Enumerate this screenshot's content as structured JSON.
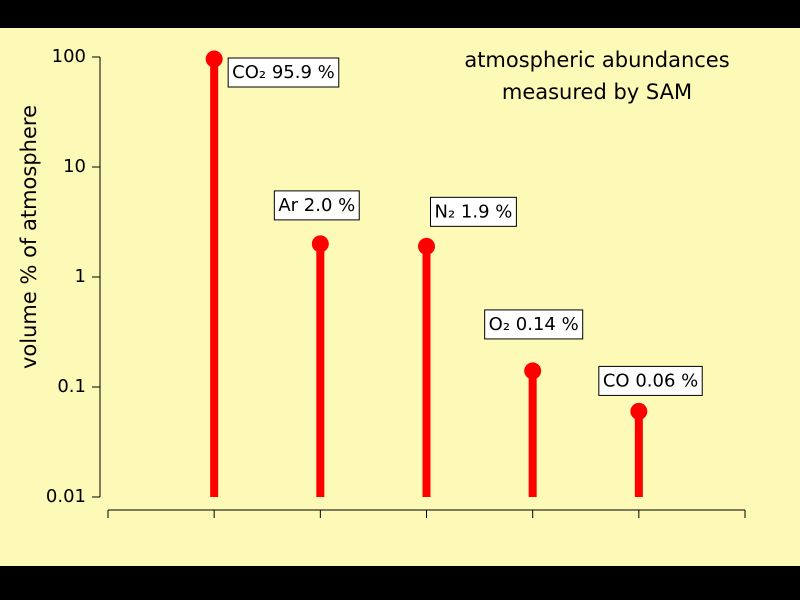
{
  "chart_data": {
    "type": "lollipop",
    "title": [
      "atmospheric abundances",
      "measured by SAM"
    ],
    "ylabel": "volume % of atmosphere",
    "categories": [
      "CO₂",
      "Ar",
      "N₂",
      "O₂",
      "CO"
    ],
    "values": [
      95.9,
      2.0,
      1.9,
      0.14,
      0.06
    ],
    "value_labels": [
      "95.9 %",
      "2.0 %",
      "1.9 %",
      "0.14 %",
      "0.06 %"
    ],
    "color": "#ff0000",
    "yscale": "log",
    "ylim": [
      0.01,
      100
    ],
    "yticks": [
      0.01,
      0.1,
      1,
      10,
      100
    ]
  }
}
